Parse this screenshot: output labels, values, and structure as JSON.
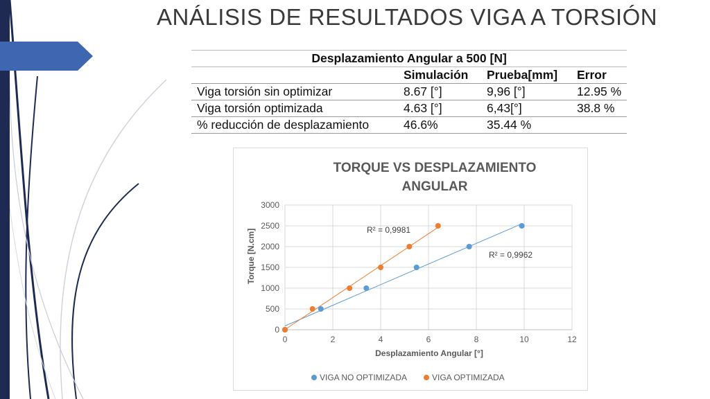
{
  "slide": {
    "title": "ANÁLISIS DE RESULTADOS VIGA A TORSIÓN"
  },
  "table": {
    "caption": "Desplazamiento Angular a 500 [N]",
    "headers": [
      "",
      "Simulación",
      "Prueba[mm]",
      "Error"
    ],
    "rows": [
      [
        "Viga torsión sin optimizar",
        "8.67 [°]",
        "9,96 [°]",
        "12.95 %"
      ],
      [
        "Viga torsión optimizada",
        "4.63 [°]",
        "6,43[°]",
        "38.8 %"
      ],
      [
        "% reducción de desplazamiento",
        "46.6%",
        "35.44 %",
        ""
      ]
    ]
  },
  "colors": {
    "series_no_opt": "#5b9bd5",
    "series_opt": "#ed7d31",
    "title_text": "#595959",
    "bar_dark": "#1f2a52",
    "arrow": "#3f67b1"
  },
  "chart_data": {
    "type": "scatter",
    "title_line1": "TORQUE VS DESPLAZAMIENTO",
    "title_line2": "ANGULAR",
    "xlabel": "Desplazamiento Angular [°]",
    "ylabel": "Torque [N.cm]",
    "xlim": [
      0,
      12
    ],
    "ylim": [
      0,
      3000
    ],
    "xticks": [
      0,
      2,
      4,
      6,
      8,
      10,
      12
    ],
    "yticks": [
      0,
      500,
      1000,
      1500,
      2000,
      2500,
      3000
    ],
    "grid": true,
    "legend_position": "bottom",
    "series": [
      {
        "name": "VIGA NO OPTIMIZADA",
        "color": "#5b9bd5",
        "x": [
          0,
          1.5,
          3.4,
          5.5,
          7.7,
          9.9
        ],
        "y": [
          0,
          500,
          1000,
          1500,
          2000,
          2500
        ],
        "r2_label": "R² = 0,9962",
        "trendline": true
      },
      {
        "name": "VIGA OPTIMIZADA",
        "color": "#ed7d31",
        "x": [
          0,
          1.15,
          2.7,
          4.0,
          5.2,
          6.4
        ],
        "y": [
          0,
          500,
          1000,
          1500,
          2000,
          2500
        ],
        "r2_label": "R² = 0,9981",
        "trendline": true
      }
    ]
  }
}
